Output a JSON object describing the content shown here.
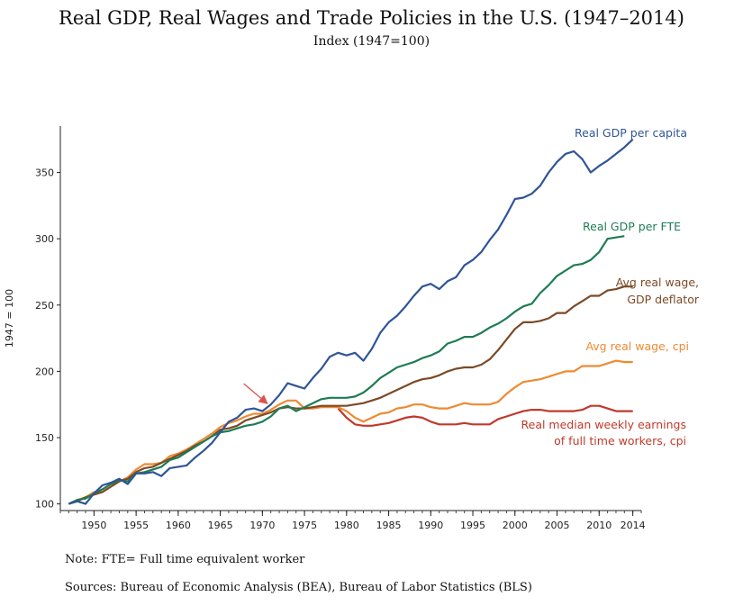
{
  "chart_data": {
    "type": "line",
    "title": "Real GDP, Real Wages and Trade Policies in the U.S. (1947–2014)",
    "subtitle": "Index (1947=100)",
    "ylabel": "1947 = 100",
    "xlabel": "",
    "xlim": [
      1946,
      2015
    ],
    "ylim": [
      95,
      385
    ],
    "yticks": [
      100,
      150,
      200,
      250,
      300,
      350
    ],
    "xticks": [
      1950,
      1955,
      1960,
      1965,
      1970,
      1975,
      1980,
      1985,
      1990,
      1995,
      2000,
      2005,
      2010,
      2014
    ],
    "grid": false,
    "legend": "inline labels at line ends",
    "annotation": "arrow pointing near 1971",
    "series": [
      {
        "name": "Real GDP per capita",
        "color": "#2f5597",
        "x": [
          1947,
          1948,
          1949,
          1950,
          1951,
          1952,
          1953,
          1954,
          1955,
          1956,
          1957,
          1958,
          1959,
          1960,
          1961,
          1962,
          1963,
          1964,
          1965,
          1966,
          1967,
          1968,
          1969,
          1970,
          1971,
          1972,
          1973,
          1974,
          1975,
          1976,
          1977,
          1978,
          1979,
          1980,
          1981,
          1982,
          1983,
          1984,
          1985,
          1986,
          1987,
          1988,
          1989,
          1990,
          1991,
          1992,
          1993,
          1994,
          1995,
          1996,
          1997,
          1998,
          1999,
          2000,
          2001,
          2002,
          2003,
          2004,
          2005,
          2006,
          2007,
          2008,
          2009,
          2010,
          2011,
          2012,
          2013,
          2014
        ],
        "values": [
          100,
          102,
          100,
          108,
          114,
          116,
          119,
          115,
          123,
          123,
          124,
          121,
          127,
          128,
          129,
          135,
          140,
          146,
          154,
          162,
          165,
          171,
          172,
          170,
          175,
          182,
          191,
          189,
          187,
          195,
          202,
          211,
          214,
          212,
          214,
          208,
          217,
          229,
          237,
          242,
          249,
          257,
          264,
          266,
          262,
          268,
          271,
          280,
          284,
          290,
          299,
          307,
          318,
          330,
          331,
          334,
          340,
          350,
          358,
          364,
          366,
          360,
          350,
          355,
          359,
          364,
          369,
          375
        ]
      },
      {
        "name": "Real GDP per FTE",
        "color": "#1e7b54",
        "x": [
          1947,
          1948,
          1949,
          1950,
          1951,
          1952,
          1953,
          1954,
          1955,
          1956,
          1957,
          1958,
          1959,
          1960,
          1961,
          1962,
          1963,
          1964,
          1965,
          1966,
          1967,
          1968,
          1969,
          1970,
          1971,
          1972,
          1973,
          1974,
          1975,
          1976,
          1977,
          1978,
          1979,
          1980,
          1981,
          1982,
          1983,
          1984,
          1985,
          1986,
          1987,
          1988,
          1989,
          1990,
          1991,
          1992,
          1993,
          1994,
          1995,
          1996,
          1997,
          1998,
          1999,
          2000,
          2001,
          2002,
          2003,
          2004,
          2005,
          2006,
          2007,
          2008,
          2009,
          2010,
          2011,
          2012,
          2013
        ],
        "values": [
          100,
          103,
          104,
          108,
          111,
          115,
          118,
          117,
          123,
          124,
          126,
          128,
          133,
          135,
          139,
          143,
          147,
          151,
          154,
          155,
          157,
          159,
          160,
          162,
          166,
          172,
          174,
          170,
          173,
          176,
          179,
          180,
          180,
          180,
          181,
          184,
          189,
          195,
          199,
          203,
          205,
          207,
          210,
          212,
          215,
          221,
          223,
          226,
          226,
          229,
          233,
          236,
          240,
          245,
          249,
          251,
          259,
          265,
          272,
          276,
          280,
          281,
          284,
          290,
          300,
          301,
          302
        ]
      },
      {
        "name": "Avg real wage, GDP deflator",
        "label_lines": [
          "Avg real wage,",
          "GDP deflator"
        ],
        "color": "#7b4a26",
        "x": [
          1947,
          1948,
          1949,
          1950,
          1951,
          1952,
          1953,
          1954,
          1955,
          1956,
          1957,
          1958,
          1959,
          1960,
          1961,
          1962,
          1963,
          1964,
          1965,
          1966,
          1967,
          1968,
          1969,
          1970,
          1971,
          1972,
          1973,
          1974,
          1975,
          1976,
          1977,
          1978,
          1979,
          1980,
          1981,
          1982,
          1983,
          1984,
          1985,
          1986,
          1987,
          1988,
          1989,
          1990,
          1991,
          1992,
          1993,
          1994,
          1995,
          1996,
          1997,
          1998,
          1999,
          2000,
          2001,
          2002,
          2003,
          2004,
          2005,
          2006,
          2007,
          2008,
          2009,
          2010,
          2011,
          2012,
          2013,
          2014
        ],
        "values": [
          100,
          102,
          105,
          107,
          109,
          113,
          117,
          119,
          124,
          127,
          128,
          131,
          134,
          137,
          140,
          144,
          147,
          151,
          156,
          157,
          159,
          163,
          165,
          167,
          169,
          172,
          173,
          172,
          172,
          173,
          174,
          174,
          174,
          174,
          175,
          176,
          178,
          180,
          183,
          186,
          189,
          192,
          194,
          195,
          197,
          200,
          202,
          203,
          203,
          205,
          209,
          216,
          224,
          232,
          237,
          237,
          238,
          240,
          244,
          244,
          249,
          253,
          257,
          257,
          261,
          262,
          264,
          264
        ]
      },
      {
        "name": "Avg real wage, cpi",
        "color": "#ee8a32",
        "x": [
          1947,
          1948,
          1949,
          1950,
          1951,
          1952,
          1953,
          1954,
          1955,
          1956,
          1957,
          1958,
          1959,
          1960,
          1961,
          1962,
          1963,
          1964,
          1965,
          1966,
          1967,
          1968,
          1969,
          1970,
          1971,
          1972,
          1973,
          1974,
          1975,
          1976,
          1977,
          1978,
          1979,
          1980,
          1981,
          1982,
          1983,
          1984,
          1985,
          1986,
          1987,
          1988,
          1989,
          1990,
          1991,
          1992,
          1993,
          1994,
          1995,
          1996,
          1997,
          1998,
          1999,
          2000,
          2001,
          2002,
          2003,
          2004,
          2005,
          2006,
          2007,
          2008,
          2009,
          2010,
          2011,
          2012,
          2013,
          2014
        ],
        "values": [
          100,
          103,
          105,
          109,
          109,
          113,
          117,
          120,
          126,
          130,
          130,
          131,
          136,
          138,
          141,
          145,
          149,
          153,
          158,
          161,
          163,
          166,
          168,
          168,
          171,
          175,
          178,
          178,
          172,
          172,
          173,
          173,
          173,
          170,
          165,
          162,
          165,
          168,
          169,
          172,
          173,
          175,
          175,
          173,
          172,
          172,
          174,
          176,
          175,
          175,
          175,
          177,
          183,
          188,
          192,
          193,
          194,
          196,
          198,
          200,
          200,
          204,
          204,
          204,
          206,
          208,
          207,
          207
        ]
      },
      {
        "name": "Real median weekly earnings of full time workers, cpi",
        "label_lines": [
          "Real median weekly earnings",
          "of full time workers, cpi"
        ],
        "color": "#c0392b",
        "x": [
          1979,
          1980,
          1981,
          1982,
          1983,
          1984,
          1985,
          1986,
          1987,
          1988,
          1989,
          1990,
          1991,
          1992,
          1993,
          1994,
          1995,
          1996,
          1997,
          1998,
          1999,
          2000,
          2001,
          2002,
          2003,
          2004,
          2005,
          2006,
          2007,
          2008,
          2009,
          2010,
          2011,
          2012,
          2013,
          2014
        ],
        "values": [
          172,
          165,
          160,
          159,
          159,
          160,
          161,
          163,
          165,
          166,
          165,
          162,
          160,
          160,
          160,
          161,
          160,
          160,
          160,
          164,
          166,
          168,
          170,
          171,
          171,
          170,
          170,
          170,
          170,
          171,
          174,
          174,
          172,
          170,
          170,
          170
        ]
      }
    ]
  },
  "notes": {
    "fte": "Note: FTE= Full time equivalent worker",
    "sources": "Sources: Bureau of Economic Analysis (BEA), Bureau of Labor Statistics (BLS)"
  }
}
